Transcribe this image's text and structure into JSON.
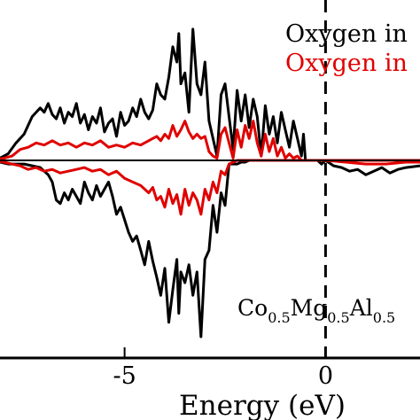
{
  "chart_data": {
    "type": "line",
    "xlabel": "Energy (eV)",
    "x_ticks": [
      {
        "value": -5,
        "label": "-5"
      },
      {
        "value": 0,
        "label": "0"
      }
    ],
    "xlim": [
      -8.1,
      2.35
    ],
    "ylim": [
      -0.98,
      0.62
    ],
    "fermi_level": 0,
    "zero_line": true,
    "legend": {
      "placement": "top-right",
      "entries": [
        {
          "label": "Oxygen in",
          "color": "#000000"
        },
        {
          "label": "Oxygen in",
          "color": "#e00000"
        }
      ]
    },
    "composition_label": {
      "parts": [
        {
          "text": "Co",
          "sub": false
        },
        {
          "text": "0.5",
          "sub": true
        },
        {
          "text": "Mg",
          "sub": false
        },
        {
          "text": "0.5",
          "sub": true
        },
        {
          "text": "Al",
          "sub": false
        },
        {
          "text": "0.5",
          "sub": true
        }
      ]
    },
    "series": [
      {
        "color": "#000000",
        "x": [
          -8.3,
          -8.1,
          -7.9,
          -7.7,
          -7.5,
          -7.3,
          -7.1,
          -7.0,
          -6.9,
          -6.8,
          -6.7,
          -6.6,
          -6.5,
          -6.4,
          -6.3,
          -6.2,
          -6.1,
          -6.0,
          -5.9,
          -5.8,
          -5.7,
          -5.6,
          -5.5,
          -5.4,
          -5.3,
          -5.2,
          -5.1,
          -5.0,
          -4.9,
          -4.8,
          -4.7,
          -4.6,
          -4.5,
          -4.4,
          -4.3,
          -4.2,
          -4.1,
          -4.0,
          -3.9,
          -3.8,
          -3.7,
          -3.65,
          -3.6,
          -3.5,
          -3.4,
          -3.3,
          -3.2,
          -3.1,
          -3.0,
          -2.9,
          -2.8,
          -2.7,
          -2.6,
          -2.5,
          -2.4,
          -2.3,
          -2.2,
          -2.1,
          -2.0,
          -1.9,
          -1.8,
          -1.7,
          -1.6,
          -1.5,
          -1.4,
          -1.3,
          -1.2,
          -1.1,
          -1.0,
          -0.9,
          -0.8,
          -0.7,
          -0.6,
          -0.55,
          -0.5,
          -0.4,
          -0.3,
          -0.2,
          -0.1,
          0.0,
          0.2,
          0.4,
          0.6,
          0.8,
          1.0,
          1.2,
          1.4,
          1.6,
          1.8,
          2.0,
          2.35
        ],
        "up": [
          0.0,
          0.01,
          0.03,
          0.08,
          0.12,
          0.2,
          0.24,
          0.22,
          0.26,
          0.21,
          0.19,
          0.24,
          0.17,
          0.22,
          0.2,
          0.26,
          0.17,
          0.21,
          0.14,
          0.2,
          0.17,
          0.24,
          0.13,
          0.17,
          0.19,
          0.11,
          0.22,
          0.16,
          0.18,
          0.24,
          0.2,
          0.28,
          0.22,
          0.19,
          0.23,
          0.35,
          0.3,
          0.28,
          0.38,
          0.52,
          0.45,
          0.58,
          0.35,
          0.4,
          0.22,
          0.6,
          0.35,
          0.3,
          0.45,
          0.18,
          0.1,
          0.02,
          0.3,
          0.35,
          0.2,
          0.05,
          0.32,
          0.18,
          0.3,
          0.15,
          0.28,
          0.2,
          0.02,
          0.25,
          0.12,
          0.2,
          0.08,
          0.22,
          0.14,
          0.06,
          0.18,
          0.1,
          0.02,
          0.12,
          0.0,
          0.0,
          0.0,
          0.0,
          0.0,
          0.0,
          0.0,
          0.0,
          0.0,
          0.0,
          0.0,
          0.0,
          0.0,
          0.0,
          0.0,
          0.0,
          0.0
        ],
        "down": [
          0.0,
          -0.01,
          -0.02,
          -0.02,
          -0.02,
          -0.03,
          -0.04,
          -0.06,
          -0.08,
          -0.12,
          -0.22,
          -0.24,
          -0.18,
          -0.22,
          -0.16,
          -0.2,
          -0.24,
          -0.12,
          -0.18,
          -0.22,
          -0.14,
          -0.2,
          -0.16,
          -0.12,
          -0.2,
          -0.3,
          -0.26,
          -0.33,
          -0.4,
          -0.45,
          -0.42,
          -0.5,
          -0.58,
          -0.45,
          -0.56,
          -0.65,
          -0.75,
          -0.6,
          -0.9,
          -0.72,
          -0.55,
          -0.85,
          -0.62,
          -0.68,
          -0.58,
          -0.75,
          -0.62,
          -0.98,
          -0.55,
          -0.5,
          -0.25,
          -0.4,
          -0.18,
          -0.25,
          -0.02,
          -0.02,
          -0.02,
          -0.01,
          -0.01,
          0.0,
          0.0,
          0.0,
          0.0,
          0.0,
          0.0,
          0.0,
          0.0,
          0.0,
          0.0,
          0.0,
          0.0,
          0.0,
          0.0,
          0.0,
          0.0,
          0.0,
          0.0,
          0.0,
          -0.02,
          0.0,
          -0.03,
          -0.04,
          -0.06,
          -0.05,
          -0.08,
          -0.06,
          -0.04,
          -0.07,
          -0.05,
          -0.04,
          -0.03
        ]
      },
      {
        "color": "#e00000",
        "x": [
          -8.3,
          -8.0,
          -7.8,
          -7.6,
          -7.4,
          -7.2,
          -7.0,
          -6.8,
          -6.6,
          -6.4,
          -6.2,
          -6.0,
          -5.8,
          -5.6,
          -5.4,
          -5.2,
          -5.0,
          -4.8,
          -4.6,
          -4.4,
          -4.3,
          -4.2,
          -4.1,
          -4.0,
          -3.9,
          -3.8,
          -3.7,
          -3.6,
          -3.5,
          -3.4,
          -3.3,
          -3.2,
          -3.1,
          -3.0,
          -2.9,
          -2.8,
          -2.7,
          -2.6,
          -2.5,
          -2.4,
          -2.3,
          -2.2,
          -2.1,
          -2.0,
          -1.9,
          -1.8,
          -1.7,
          -1.6,
          -1.5,
          -1.4,
          -1.3,
          -1.2,
          -1.1,
          -1.0,
          -0.9,
          -0.8,
          -0.7,
          -0.6,
          -0.5,
          -0.4,
          -0.3,
          -0.2,
          0.0,
          0.5,
          1.0,
          1.5,
          2.0,
          2.35
        ],
        "up": [
          0.0,
          0.01,
          0.02,
          0.05,
          0.06,
          0.08,
          0.07,
          0.09,
          0.07,
          0.08,
          0.06,
          0.08,
          0.07,
          0.09,
          0.06,
          0.07,
          0.06,
          0.08,
          0.07,
          0.09,
          0.1,
          0.11,
          0.09,
          0.12,
          0.1,
          0.16,
          0.11,
          0.14,
          0.18,
          0.13,
          0.1,
          0.12,
          0.1,
          0.11,
          0.04,
          0.02,
          0.01,
          0.12,
          0.15,
          0.08,
          0.01,
          0.14,
          0.06,
          0.16,
          0.1,
          0.18,
          0.08,
          0.02,
          0.12,
          0.04,
          0.1,
          0.02,
          0.06,
          0.01,
          0.03,
          0.01,
          0.02,
          0.0,
          0.0,
          0.0,
          0.0,
          0.0,
          0.0,
          0.0,
          0.0,
          0.0,
          0.0,
          0.0
        ],
        "down": [
          0.0,
          -0.01,
          -0.02,
          -0.03,
          -0.05,
          -0.04,
          -0.06,
          -0.05,
          -0.07,
          -0.06,
          -0.05,
          -0.04,
          -0.06,
          -0.05,
          -0.08,
          -0.06,
          -0.1,
          -0.12,
          -0.14,
          -0.18,
          -0.15,
          -0.22,
          -0.2,
          -0.26,
          -0.16,
          -0.24,
          -0.19,
          -0.3,
          -0.16,
          -0.25,
          -0.18,
          -0.22,
          -0.3,
          -0.16,
          -0.22,
          -0.12,
          -0.18,
          -0.06,
          -0.08,
          -0.02,
          -0.01,
          0.0,
          0.0,
          0.0,
          0.0,
          0.0,
          0.0,
          0.0,
          0.0,
          0.0,
          0.0,
          0.0,
          0.0,
          0.0,
          0.0,
          0.0,
          0.0,
          0.0,
          0.0,
          0.0,
          0.0,
          0.0,
          0.0,
          -0.01,
          -0.02,
          -0.02,
          -0.01,
          -0.01
        ]
      }
    ]
  }
}
